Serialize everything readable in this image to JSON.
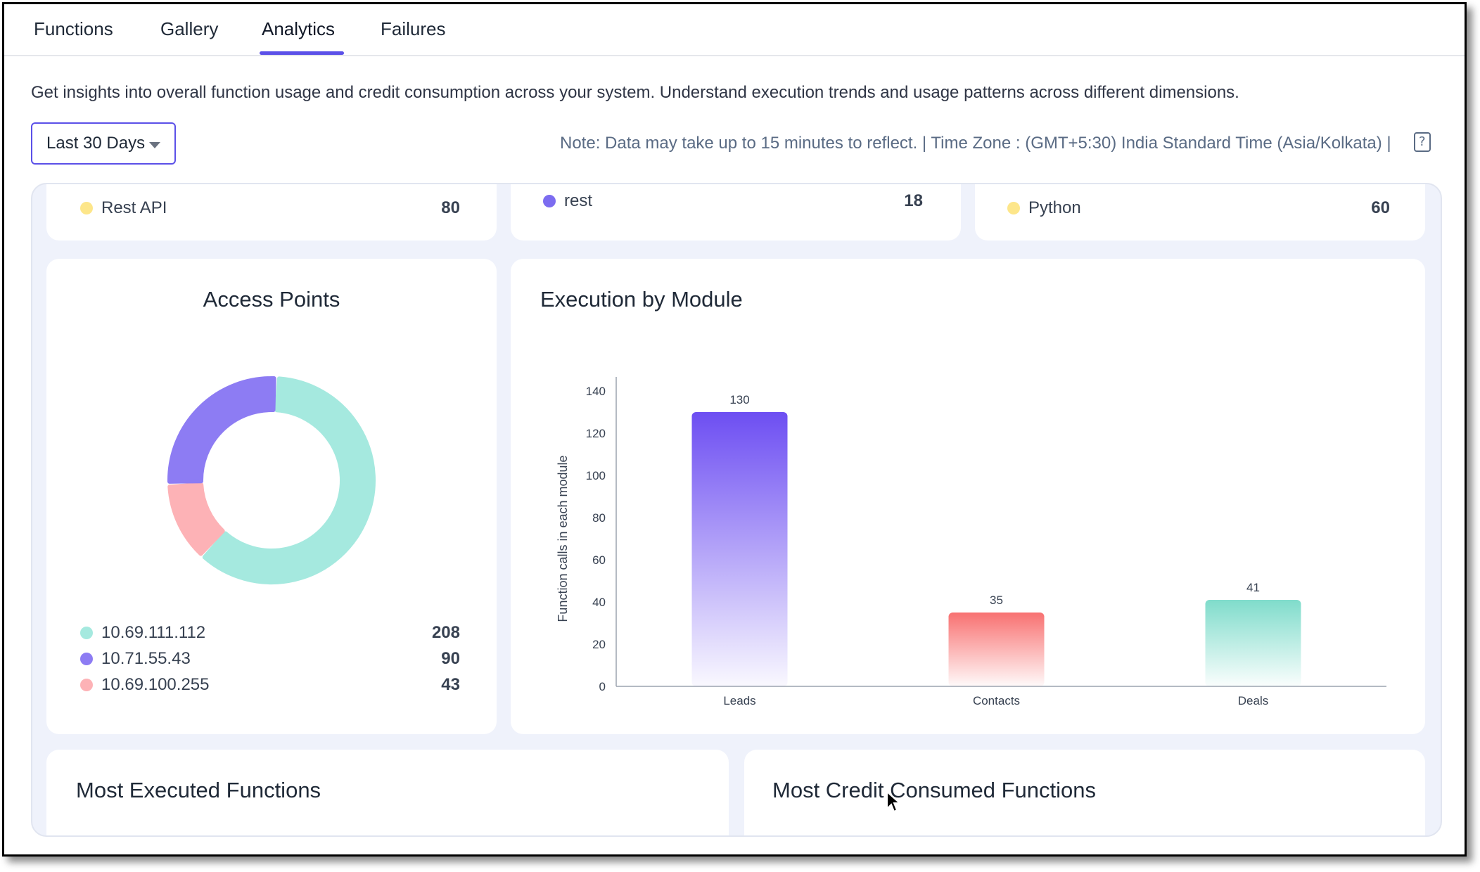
{
  "tabs": [
    {
      "label": "Functions"
    },
    {
      "label": "Gallery"
    },
    {
      "label": "Analytics",
      "active": true
    },
    {
      "label": "Failures"
    }
  ],
  "description": "Get insights into overall function usage and credit consumption across your system. Understand execution trends and usage patterns across different dimensions.",
  "date_range": {
    "selected": "Last 30 Days"
  },
  "note": "Note: Data may take up to 15 minutes to reflect. | Time Zone : (GMT+5:30) India Standard Time (Asia/Kolkata) |",
  "top_cards": [
    {
      "label": "Rest API",
      "value": "80",
      "color": "#fde68a"
    },
    {
      "label": "rest",
      "value": "18",
      "color": "#7c6cf0"
    },
    {
      "label": "Python",
      "value": "60",
      "color": "#fde68a"
    }
  ],
  "access_points": {
    "title": "Access Points",
    "items": [
      {
        "label": "10.69.111.112",
        "value": "208",
        "color": "#a5e9df"
      },
      {
        "label": "10.71.55.43",
        "value": "90",
        "color": "#8d7cf3"
      },
      {
        "label": "10.69.100.255",
        "value": "43",
        "color": "#fdb2b6"
      }
    ]
  },
  "execution_by_module": {
    "title": "Execution by Module"
  },
  "chart_data": {
    "type": "bar",
    "categories": [
      "Leads",
      "Contacts",
      "Deals"
    ],
    "values": [
      130,
      35,
      41
    ],
    "ylabel": "Function calls in each module",
    "ylim": [
      0,
      140
    ],
    "yticks": [
      "0",
      "20",
      "40",
      "60",
      "80",
      "100",
      "120",
      "140"
    ],
    "colors": [
      "#6d4ef2",
      "#f87171",
      "#7fdccb"
    ]
  },
  "bottom_cards": {
    "most_executed": "Most Executed Functions",
    "most_credit": "Most Credit Consumed Functions"
  }
}
